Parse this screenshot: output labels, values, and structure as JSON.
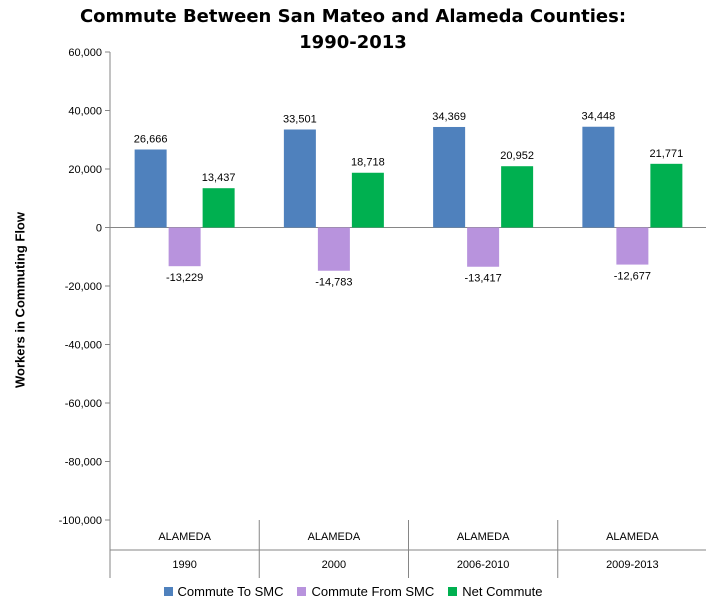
{
  "chart_data": {
    "type": "bar",
    "title_line1": "Commute Between San Mateo and Alameda Counties:",
    "title_line2": "1990-2013",
    "xlabel": "",
    "ylabel": "Workers in Commuting Flow",
    "ylim": [
      -100000,
      60000
    ],
    "yticks": [
      60000,
      40000,
      20000,
      0,
      -20000,
      -40000,
      -60000,
      -80000,
      -100000
    ],
    "ytick_labels": [
      "60,000",
      "40,000",
      "20,000",
      "0",
      "-20,000",
      "-40,000",
      "-60,000",
      "-80,000",
      "-100,000"
    ],
    "categories": [
      {
        "county": "ALAMEDA",
        "period": "1990"
      },
      {
        "county": "ALAMEDA",
        "period": "2000"
      },
      {
        "county": "ALAMEDA",
        "period": "2006-2010"
      },
      {
        "county": "ALAMEDA",
        "period": "2009-2013"
      }
    ],
    "series": [
      {
        "name": "Commute To SMC",
        "color": "#4f81bd",
        "values": [
          26666,
          33501,
          34369,
          34448
        ],
        "labels": [
          "26,666",
          "33,501",
          "34,369",
          "34,448"
        ]
      },
      {
        "name": "Commute From SMC",
        "color": "#b893dd",
        "values": [
          -13229,
          -14783,
          -13417,
          -12677
        ],
        "labels": [
          "-13,229",
          "-14,783",
          "-13,417",
          "-12,677"
        ]
      },
      {
        "name": "Net Commute",
        "color": "#00b050",
        "values": [
          13437,
          18718,
          20952,
          21771
        ],
        "labels": [
          "13,437",
          "18,718",
          "20,952",
          "21,771"
        ]
      }
    ],
    "grid": false,
    "legend_position": "bottom"
  }
}
